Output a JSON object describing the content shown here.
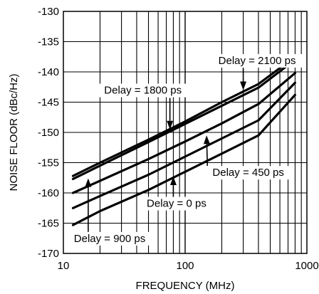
{
  "chart_data": {
    "type": "line",
    "xlabel": "FREQUENCY (MHz)",
    "ylabel": "NOISE FLOOR (dBc/Hz)",
    "xscale": "log",
    "xlim": [
      10,
      1000
    ],
    "ylim": [
      -170,
      -130
    ],
    "x_ticks": [
      {
        "value": 10,
        "label": "10"
      },
      {
        "value": 100,
        "label": "100"
      },
      {
        "value": 1000,
        "label": "1000"
      }
    ],
    "y_ticks": [
      {
        "value": -130,
        "label": "-130"
      },
      {
        "value": -135,
        "label": "-135"
      },
      {
        "value": -140,
        "label": "-140"
      },
      {
        "value": -145,
        "label": "-145"
      },
      {
        "value": -150,
        "label": "-150"
      },
      {
        "value": -155,
        "label": "-155"
      },
      {
        "value": -160,
        "label": "-160"
      },
      {
        "value": -165,
        "label": "-165"
      },
      {
        "value": -170,
        "label": "-170"
      }
    ],
    "grid": true,
    "series": [
      {
        "name": "Delay = 2100 ps",
        "x": [
          12,
          20,
          50,
          100,
          200,
          400,
          800
        ],
        "y": [
          -157.2,
          -155.0,
          -151.2,
          -148.2,
          -145.0,
          -142.0,
          -137.5
        ]
      },
      {
        "name": "Delay = 1800 ps",
        "x": [
          12,
          20,
          50,
          100,
          200,
          400,
          800
        ],
        "y": [
          -157.7,
          -155.5,
          -151.6,
          -148.6,
          -145.6,
          -142.6,
          -138.0
        ]
      },
      {
        "name": "Delay = 900 ps",
        "x": [
          12,
          20,
          50,
          100,
          200,
          400,
          800
        ],
        "y": [
          -160.0,
          -158.0,
          -154.4,
          -151.5,
          -148.5,
          -145.3,
          -140.2
        ]
      },
      {
        "name": "Delay = 450 ps",
        "x": [
          12,
          20,
          50,
          100,
          200,
          400,
          800
        ],
        "y": [
          -162.5,
          -160.5,
          -157.0,
          -154.0,
          -151.0,
          -148.0,
          -141.8
        ]
      },
      {
        "name": "Delay = 0 ps",
        "x": [
          12,
          20,
          50,
          100,
          200,
          400,
          800
        ],
        "y": [
          -165.3,
          -163.0,
          -159.5,
          -156.5,
          -153.5,
          -150.5,
          -143.8
        ]
      }
    ],
    "annotations": [
      {
        "text": "Delay = 2100 ps",
        "series": "Delay = 2100 ps",
        "label_at": [
          390,
          -138.7
        ],
        "arrow_tip": [
          300,
          -143.0
        ]
      },
      {
        "text": "Delay = 1800 ps",
        "series": "Delay = 1800 ps",
        "label_at": [
          45,
          -143.6
        ],
        "arrow_tip": [
          75,
          -149.5
        ]
      },
      {
        "text": "Delay = 450 ps",
        "series": "Delay = 450 ps",
        "label_at": [
          330,
          -157.2
        ],
        "arrow_tip": [
          150,
          -150.5
        ]
      },
      {
        "text": "Delay = 0 ps",
        "series": "Delay = 0 ps",
        "label_at": [
          85,
          -162.3
        ],
        "arrow_tip": [
          80,
          -157.3
        ]
      },
      {
        "text": "Delay = 900 ps",
        "series": "Delay = 900 ps",
        "label_at": [
          24,
          -168.1
        ],
        "arrow_tip": [
          16,
          -157.6
        ]
      }
    ]
  }
}
